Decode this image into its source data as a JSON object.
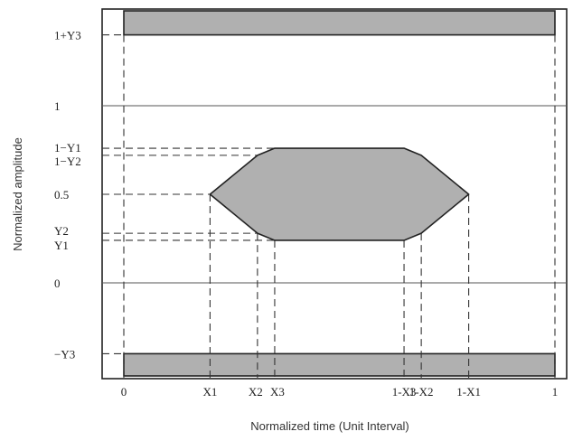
{
  "axes": {
    "x_title": "Normalized time (Unit Interval)",
    "y_title": "Normalized amplitude"
  },
  "x_ticks": [
    {
      "label": "0",
      "value": 0.0
    },
    {
      "label": "X1",
      "value": 0.2
    },
    {
      "label": "X2",
      "value": 0.31
    },
    {
      "label": "X3",
      "value": 0.35
    },
    {
      "label": "1-X3",
      "value": 0.65
    },
    {
      "label": "1-X2",
      "value": 0.69
    },
    {
      "label": "1-X1",
      "value": 0.8
    },
    {
      "label": "1",
      "value": 1.0
    }
  ],
  "y_ticks": [
    {
      "label": "1+Y3",
      "value": 1.4
    },
    {
      "label": "1",
      "value": 1.0
    },
    {
      "label": "1−Y1",
      "value": 0.76
    },
    {
      "label": "1−Y2",
      "value": 0.72
    },
    {
      "label": "0.5",
      "value": 0.5
    },
    {
      "label": "Y2",
      "value": 0.28
    },
    {
      "label": "Y1",
      "value": 0.24
    },
    {
      "label": "0",
      "value": 0.0
    },
    {
      "label": "−Y3",
      "value": -0.4
    }
  ],
  "mask": {
    "polygon": [
      [
        0.2,
        0.5
      ],
      [
        0.31,
        0.72
      ],
      [
        0.35,
        0.76
      ],
      [
        0.65,
        0.76
      ],
      [
        0.69,
        0.72
      ],
      [
        0.8,
        0.5
      ],
      [
        0.69,
        0.28
      ],
      [
        0.65,
        0.24
      ],
      [
        0.35,
        0.24
      ],
      [
        0.31,
        0.28
      ]
    ]
  },
  "colors": {
    "fill": "#b0b0b0",
    "stroke": "#222222"
  }
}
